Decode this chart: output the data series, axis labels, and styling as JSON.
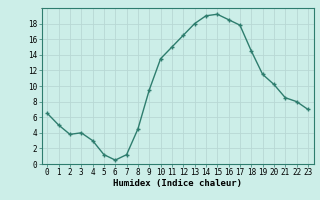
{
  "x": [
    0,
    1,
    2,
    3,
    4,
    5,
    6,
    7,
    8,
    9,
    10,
    11,
    12,
    13,
    14,
    15,
    16,
    17,
    18,
    19,
    20,
    21,
    22,
    23
  ],
  "y": [
    6.5,
    5.0,
    3.8,
    4.0,
    3.0,
    1.2,
    0.5,
    1.2,
    4.5,
    9.5,
    13.5,
    15.0,
    16.5,
    18.0,
    19.0,
    19.2,
    18.5,
    17.8,
    14.5,
    11.5,
    10.2,
    8.5,
    8.0,
    7.0
  ],
  "line_color": "#2e7d6e",
  "marker": "+",
  "marker_size": 3,
  "marker_linewidth": 1.0,
  "line_width": 1.0,
  "background_color": "#cceee8",
  "grid_major_color": "#b8d8d4",
  "grid_minor_color": "#d0e8e4",
  "xlabel": "Humidex (Indice chaleur)",
  "xlabel_fontsize": 6.5,
  "tick_fontsize": 5.5,
  "xlim": [
    -0.5,
    23.5
  ],
  "ylim": [
    0,
    20
  ],
  "yticks": [
    0,
    2,
    4,
    6,
    8,
    10,
    12,
    14,
    16,
    18
  ],
  "xticks": [
    0,
    1,
    2,
    3,
    4,
    5,
    6,
    7,
    8,
    9,
    10,
    11,
    12,
    13,
    14,
    15,
    16,
    17,
    18,
    19,
    20,
    21,
    22,
    23
  ],
  "spine_color": "#2e7d6e",
  "tick_color": "#2e7d6e"
}
